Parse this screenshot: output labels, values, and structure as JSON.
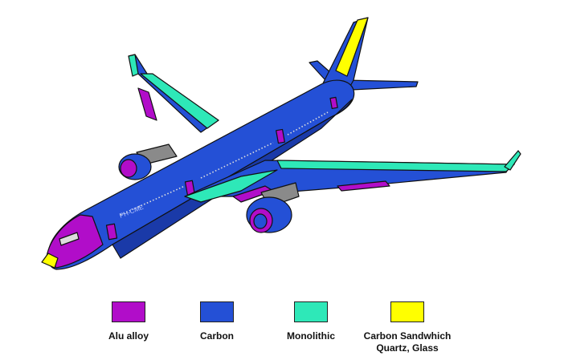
{
  "registration": "PH-CME",
  "colors": {
    "alu": "#b10dc9",
    "carbon": "#2450d6",
    "carbon_dark": "#1a3aa8",
    "monolithic": "#2ee8b8",
    "sandwich": "#ffff00",
    "gray": "#8a8a8a"
  },
  "legend": [
    {
      "name": "alu",
      "swatch": "#b10dc9",
      "line1": "Alu alloy",
      "line2": ""
    },
    {
      "name": "carbon",
      "swatch": "#2450d6",
      "line1": "Carbon",
      "line2": ""
    },
    {
      "name": "monolithic",
      "swatch": "#2ee8b8",
      "line1": "Monolithic",
      "line2": ""
    },
    {
      "name": "sandwich",
      "swatch": "#ffff00",
      "line1": "Carbon Sandwhich",
      "line2": "Quartz, Glass"
    }
  ]
}
